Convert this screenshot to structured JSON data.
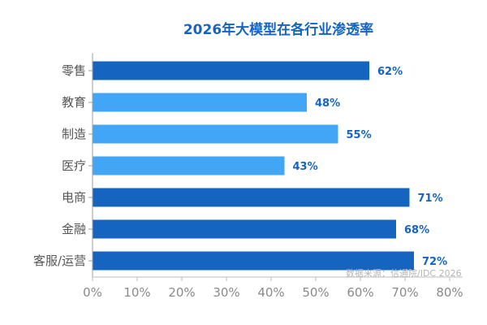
{
  "chart_data": {
    "type": "bar",
    "orientation": "horizontal",
    "title": "2026年大模型在各行业渗透率",
    "categories": [
      "零售",
      "教育",
      "制造",
      "医疗",
      "电商",
      "金融",
      "客服/运营"
    ],
    "values": [
      62,
      48,
      55,
      43,
      71,
      68,
      72
    ],
    "value_labels": [
      "62%",
      "48%",
      "55%",
      "43%",
      "71%",
      "68%",
      "72%"
    ],
    "bar_colors": [
      "#1565c0",
      "#42a5f5",
      "#42a5f5",
      "#42a5f5",
      "#1565c0",
      "#1565c0",
      "#1565c0"
    ],
    "xlim": [
      0,
      80
    ],
    "x_ticks": [
      0,
      10,
      20,
      30,
      40,
      50,
      60,
      70,
      80
    ],
    "x_tick_labels": [
      "0%",
      "10%",
      "20%",
      "30%",
      "40%",
      "50%",
      "60%",
      "70%",
      "80%"
    ],
    "xlabel": "",
    "ylabel": "",
    "grid": false,
    "legend": "none",
    "source": "数据来源：信通院/IDC 2026"
  }
}
